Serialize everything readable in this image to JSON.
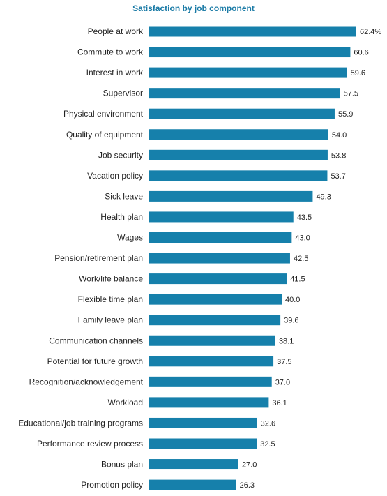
{
  "colors": {
    "bar": "#1680ab",
    "title": "#1b7ba6",
    "text": "#1f1f1f"
  },
  "chart_data": {
    "type": "bar",
    "orientation": "horizontal",
    "title": "Satisfaction by job component",
    "xlabel": "",
    "ylabel": "",
    "unit": "%",
    "xlim": [
      0,
      65
    ],
    "grid": false,
    "categories": [
      "People at work",
      "Commute to work",
      "Interest in work",
      "Supervisor",
      "Physical environment",
      "Quality of equipment",
      "Job security",
      "Vacation policy",
      "Sick leave",
      "Health plan",
      "Wages",
      "Pension/retirement plan",
      "Work/life balance",
      "Flexible time plan",
      "Family leave plan",
      "Communication channels",
      "Potential for future growth",
      "Recognition/acknowledgement",
      "Workload",
      "Educational/job training programs",
      "Performance review process",
      "Bonus plan",
      "Promotion policy"
    ],
    "values": [
      62.4,
      60.6,
      59.6,
      57.5,
      55.9,
      54.0,
      53.8,
      53.7,
      49.3,
      43.5,
      43.0,
      42.5,
      41.5,
      40.0,
      39.6,
      38.1,
      37.5,
      37.0,
      36.1,
      32.6,
      32.5,
      27.0,
      26.3
    ],
    "value_labels": [
      "62.4%",
      "60.6",
      "59.6",
      "57.5",
      "55.9",
      "54.0",
      "53.8",
      "53.7",
      "49.3",
      "43.5",
      "43.0",
      "42.5",
      "41.5",
      "40.0",
      "39.6",
      "38.1",
      "37.5",
      "37.0",
      "36.1",
      "32.6",
      "32.5",
      "27.0",
      "26.3"
    ]
  }
}
